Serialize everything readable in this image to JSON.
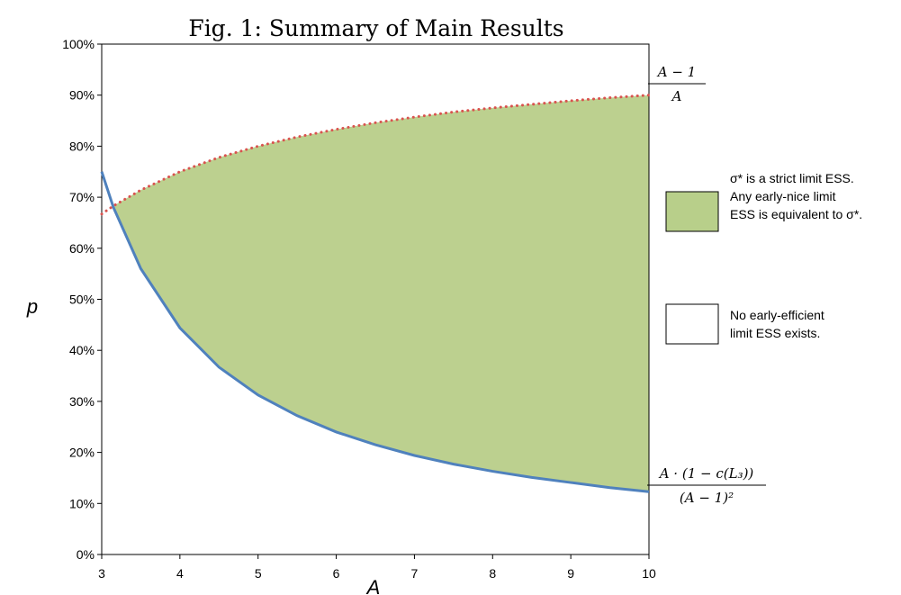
{
  "chart_data": {
    "type": "area",
    "title": "Fig. 1: Summary of Main Results",
    "xlabel": "A",
    "ylabel": "p",
    "xlim": [
      3,
      10
    ],
    "ylim": [
      0,
      1
    ],
    "x_ticks": [
      "3",
      "4",
      "5",
      "6",
      "7",
      "8",
      "9",
      "10"
    ],
    "y_ticks": [
      "0%",
      "10%",
      "20%",
      "30%",
      "40%",
      "50%",
      "60%",
      "70%",
      "80%",
      "90%",
      "100%"
    ],
    "x": [
      3,
      3.15,
      3.5,
      4,
      4.5,
      5,
      5.5,
      6,
      6.5,
      7,
      7.5,
      8,
      8.5,
      9,
      9.5,
      10
    ],
    "series": [
      {
        "label_lines": [
          "A − 1",
          "A"
        ],
        "style": "dotted",
        "color": "#d9534f",
        "values": [
          0.667,
          0.683,
          0.714,
          0.75,
          0.778,
          0.8,
          0.818,
          0.833,
          0.846,
          0.857,
          0.867,
          0.875,
          0.882,
          0.889,
          0.895,
          0.9
        ]
      },
      {
        "label_lines": [
          "A · (1 − c(L₃))",
          "(A − 1)²"
        ],
        "style": "solid",
        "color": "#4f81bd",
        "values": [
          0.75,
          0.68,
          0.56,
          0.444,
          0.367,
          0.3125,
          0.272,
          0.24,
          0.215,
          0.194,
          0.177,
          0.163,
          0.151,
          0.141,
          0.131,
          0.123
        ]
      }
    ],
    "shaded_region": {
      "from_x": 3.15,
      "to_x": 10,
      "between": "lower curve and upper curve",
      "color": "#bcd08f"
    },
    "legend": {
      "placement": "right",
      "entries": [
        {
          "color": "#b8cf8a",
          "lines": [
            "σ* is a strict limit ESS.",
            "Any early-nice limit",
            "ESS is equivalent to σ*."
          ]
        },
        {
          "color": "#ffffff",
          "lines": [
            "No early-efficient",
            "limit ESS exists."
          ]
        }
      ]
    },
    "grid": false
  }
}
